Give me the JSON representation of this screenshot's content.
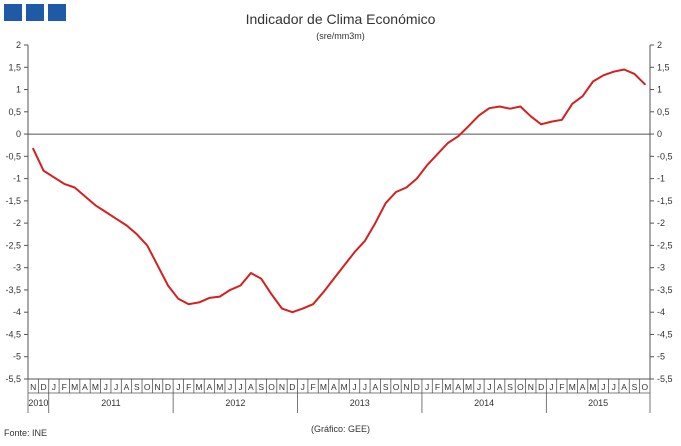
{
  "chart_data": {
    "type": "line",
    "title": "Indicador de Clima Económico",
    "subtitle": "(sre/mm3m)",
    "source": "Fonte: INE",
    "credit": "(Gráfico: GEE)",
    "ylim": [
      -5.5,
      2
    ],
    "y_ticks": [
      "2",
      "1,5",
      "1",
      "0,5",
      "0",
      "-0,5",
      "-1",
      "-1,5",
      "-2",
      "-2,5",
      "-3",
      "-3,5",
      "-4",
      "-4,5",
      "-5",
      "-5,5"
    ],
    "y_tick_values": [
      2,
      1.5,
      1,
      0.5,
      0,
      -0.5,
      -1,
      -1.5,
      -2,
      -2.5,
      -3,
      -3.5,
      -4,
      -4.5,
      -5,
      -5.5
    ],
    "month_labels": [
      "N",
      "D",
      "J",
      "F",
      "M",
      "A",
      "M",
      "J",
      "J",
      "A",
      "S",
      "O",
      "N",
      "D",
      "J",
      "F",
      "M",
      "A",
      "M",
      "J",
      "J",
      "A",
      "S",
      "O",
      "N",
      "D",
      "J",
      "F",
      "M",
      "A",
      "M",
      "J",
      "J",
      "A",
      "S",
      "O",
      "N",
      "D",
      "J",
      "F",
      "M",
      "A",
      "M",
      "J",
      "J",
      "A",
      "S",
      "O",
      "N",
      "D",
      "J",
      "F",
      "M",
      "A",
      "M",
      "J",
      "J",
      "A",
      "S",
      "O"
    ],
    "year_labels": [
      {
        "label": "2010",
        "start": 0,
        "end": 1
      },
      {
        "label": "2011",
        "start": 2,
        "end": 13
      },
      {
        "label": "2012",
        "start": 14,
        "end": 25
      },
      {
        "label": "2013",
        "start": 26,
        "end": 37
      },
      {
        "label": "2014",
        "start": 38,
        "end": 49
      },
      {
        "label": "2015",
        "start": 50,
        "end": 59
      }
    ],
    "series": [
      {
        "name": "",
        "color": "#d42020",
        "values": [
          -0.33,
          -0.82,
          -0.97,
          -1.12,
          -1.2,
          -1.4,
          -1.6,
          -1.75,
          -1.9,
          -2.05,
          -2.25,
          -2.5,
          -2.95,
          -3.4,
          -3.7,
          -3.82,
          -3.78,
          -3.68,
          -3.65,
          -3.5,
          -3.4,
          -3.12,
          -3.25,
          -3.6,
          -3.92,
          -4.0,
          -3.92,
          -3.82,
          -3.55,
          -3.25,
          -2.95,
          -2.65,
          -2.4,
          -2.0,
          -1.55,
          -1.3,
          -1.2,
          -1.0,
          -0.7,
          -0.45,
          -0.2,
          -0.05,
          0.18,
          0.42,
          0.58,
          0.62,
          0.57,
          0.62,
          0.4,
          0.22,
          0.28,
          0.32,
          0.68,
          0.85,
          1.18,
          1.32,
          1.4,
          1.45,
          1.35,
          1.12
        ]
      }
    ]
  }
}
